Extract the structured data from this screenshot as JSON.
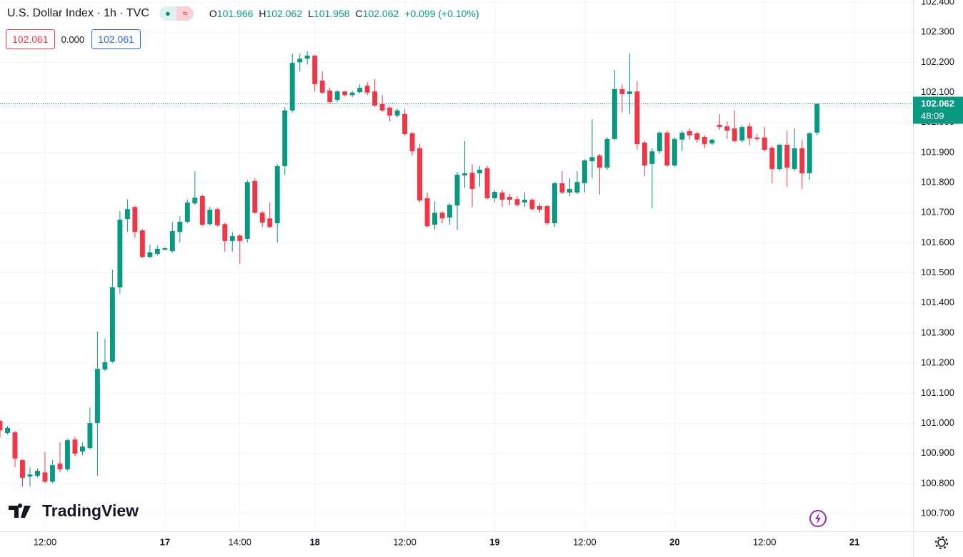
{
  "legend": {
    "title": "U.S. Dollar Index · 1h · TVC",
    "open_label": "O",
    "open": "101.966",
    "high_label": "H",
    "high": "102.062",
    "low_label": "L",
    "low": "101.958",
    "close_label": "C",
    "close": "102.062",
    "change": "+0.099 (+0.10%)"
  },
  "boxes": {
    "sell": "102.061",
    "spread": "0.000",
    "buy": "102.061"
  },
  "brand": "TradingView",
  "chart_data": {
    "type": "candlestick",
    "up_color": "#089981",
    "down_color": "#f23645",
    "grid": true,
    "open": [
      101.008,
      100.968,
      100.97,
      100.878,
      100.823,
      100.826,
      100.837,
      100.806,
      100.866,
      100.847,
      100.946,
      100.906,
      100.918,
      101.001,
      101.179,
      101.205,
      101.452,
      101.679,
      101.719,
      101.641,
      101.553,
      101.563,
      101.577,
      101.572,
      101.636,
      101.67,
      101.731,
      101.755,
      101.662,
      101.712,
      101.662,
      101.606,
      101.624,
      101.613,
      101.805,
      101.7,
      101.681,
      101.665,
      101.855,
      102.04,
      102.2,
      102.212,
      102.222,
      102.139,
      102.106,
      102.075,
      102.103,
      102.091,
      102.101,
      102.122,
      102.103,
      102.061,
      102.049,
      102.023,
      102.028,
      101.964,
      101.914,
      101.748,
      101.66,
      101.7,
      101.684,
      101.724,
      101.824,
      101.833,
      101.831,
      101.848,
      101.748,
      101.767,
      101.753,
      101.745,
      101.734,
      101.743,
      101.722,
      101.722,
      101.665,
      101.798,
      101.767,
      101.767,
      101.798,
      101.871,
      101.89,
      101.85,
      101.945,
      102.111,
      102.094,
      102.103,
      101.933,
      101.862,
      101.904,
      101.966,
      101.857,
      101.943,
      101.971,
      101.964,
      101.952,
      101.93,
      101.992,
      101.987,
      101.98,
      101.94,
      101.987,
      101.95,
      101.95,
      101.916,
      101.845,
      101.926,
      101.845,
      101.914,
      101.831,
      101.966
    ],
    "high": [
      101.014,
      100.99,
      100.975,
      100.88,
      100.854,
      100.85,
      100.904,
      100.878,
      100.937,
      100.949,
      100.956,
      100.937,
      101.053,
      101.305,
      101.281,
      101.511,
      101.705,
      101.745,
      101.724,
      101.646,
      101.594,
      101.591,
      101.584,
      101.67,
      101.689,
      101.745,
      101.838,
      101.76,
      101.719,
      101.717,
      101.667,
      101.636,
      101.629,
      101.809,
      101.814,
      101.705,
      101.734,
      101.862,
      102.051,
      102.229,
      102.229,
      102.236,
      102.224,
      102.17,
      102.115,
      102.108,
      102.106,
      102.106,
      102.127,
      102.134,
      102.144,
      102.091,
      102.054,
      102.047,
      102.044,
      101.968,
      101.928,
      101.767,
      101.738,
      101.705,
      101.731,
      101.836,
      101.938,
      101.862,
      101.855,
      101.857,
      101.774,
      101.776,
      101.762,
      101.755,
      101.767,
      101.748,
      101.731,
      101.726,
      101.802,
      101.838,
      101.814,
      101.838,
      101.878,
      102.011,
      101.895,
      101.952,
      102.175,
      102.127,
      102.229,
      102.137,
      101.938,
      101.914,
      101.971,
      101.973,
      101.95,
      101.973,
      101.98,
      101.968,
      101.957,
      101.947,
      102.028,
      102.004,
      102.04,
      101.992,
      101.999,
      101.961,
      101.985,
      101.921,
      101.93,
      101.973,
      101.98,
      101.942,
      101.968,
      102.062
    ],
    "low": [
      100.953,
      100.963,
      100.854,
      100.79,
      100.79,
      100.82,
      100.802,
      100.802,
      100.837,
      100.842,
      100.89,
      100.894,
      100.913,
      100.826,
      101.174,
      101.2,
      101.43,
      101.636,
      101.617,
      101.549,
      101.549,
      101.558,
      101.575,
      101.568,
      101.601,
      101.665,
      101.726,
      101.655,
      101.658,
      101.653,
      101.57,
      101.57,
      101.53,
      101.601,
      101.696,
      101.653,
      101.648,
      101.601,
      101.826,
      102.033,
      102.17,
      102.193,
      102.103,
      102.094,
      102.063,
      102.068,
      102.087,
      102.085,
      102.096,
      102.091,
      102.051,
      102.035,
      102.004,
      102.016,
      101.957,
      101.89,
      101.736,
      101.651,
      101.643,
      101.665,
      101.66,
      101.643,
      101.783,
      101.719,
      101.786,
      101.743,
      101.736,
      101.719,
      101.724,
      101.719,
      101.719,
      101.707,
      101.7,
      101.66,
      101.653,
      101.762,
      101.755,
      101.762,
      101.767,
      101.814,
      101.76,
      101.843,
      101.94,
      102.033,
      102.028,
      101.909,
      101.822,
      101.715,
      101.897,
      101.852,
      101.852,
      101.904,
      101.943,
      101.933,
      101.914,
      101.926,
      101.976,
      101.945,
      101.933,
      101.933,
      101.924,
      101.938,
      101.904,
      101.798,
      101.838,
      101.786,
      101.838,
      101.779,
      101.809,
      101.958
    ],
    "close": [
      100.977,
      100.985,
      100.883,
      100.819,
      100.83,
      100.842,
      100.806,
      100.861,
      100.847,
      100.944,
      100.899,
      100.923,
      101.001,
      101.181,
      101.203,
      101.452,
      101.677,
      101.712,
      101.636,
      101.553,
      101.568,
      101.58,
      101.582,
      101.639,
      101.67,
      101.734,
      101.75,
      101.66,
      101.71,
      101.658,
      101.606,
      101.622,
      101.606,
      101.802,
      101.7,
      101.667,
      101.653,
      101.855,
      102.04,
      102.198,
      102.212,
      102.222,
      102.127,
      102.099,
      102.068,
      102.103,
      102.091,
      102.099,
      102.115,
      102.099,
      102.056,
      102.04,
      102.023,
      102.04,
      101.961,
      101.904,
      101.741,
      101.655,
      101.7,
      101.681,
      101.726,
      101.826,
      101.831,
      101.779,
      101.843,
      101.748,
      101.769,
      101.743,
      101.743,
      101.726,
      101.743,
      101.712,
      101.71,
      101.665,
      101.798,
      101.767,
      101.779,
      101.802,
      101.874,
      101.885,
      101.85,
      101.945,
      102.111,
      102.094,
      102.103,
      101.928,
      101.857,
      101.904,
      101.966,
      101.857,
      101.945,
      101.966,
      101.957,
      101.943,
      101.928,
      101.943,
      101.985,
      101.973,
      101.938,
      101.985,
      101.947,
      101.945,
      101.909,
      101.845,
      101.926,
      101.85,
      101.914,
      101.831,
      101.964,
      102.062
    ],
    "xlim": [
      0,
      121.8
    ],
    "xticks": [
      {
        "value": 6,
        "label": "12:00"
      },
      {
        "value": 22,
        "label": "17"
      },
      {
        "value": 32,
        "label": "14:00"
      },
      {
        "value": 42,
        "label": "18"
      },
      {
        "value": 54,
        "label": "12:00"
      },
      {
        "value": 66,
        "label": "19"
      },
      {
        "value": 78,
        "label": "12:00"
      },
      {
        "value": 90,
        "label": "20"
      },
      {
        "value": 102,
        "label": "12:00"
      },
      {
        "value": 114,
        "label": "21"
      }
    ],
    "ylim": [
      100.641,
      102.407
    ],
    "yticks": [
      {
        "value": 100.7,
        "label": "100.700"
      },
      {
        "value": 100.8,
        "label": "100.800"
      },
      {
        "value": 100.9,
        "label": "100.900"
      },
      {
        "value": 101.0,
        "label": "101.000"
      },
      {
        "value": 101.1,
        "label": "101.100"
      },
      {
        "value": 101.2,
        "label": "101.200"
      },
      {
        "value": 101.3,
        "label": "101.300"
      },
      {
        "value": 101.4,
        "label": "101.400"
      },
      {
        "value": 101.5,
        "label": "101.500"
      },
      {
        "value": 101.6,
        "label": "101.600"
      },
      {
        "value": 101.7,
        "label": "101.700"
      },
      {
        "value": 101.8,
        "label": "101.800"
      },
      {
        "value": 101.9,
        "label": "101.900"
      },
      {
        "value": 102.0,
        "label": "102.000"
      },
      {
        "value": 102.1,
        "label": "102.100"
      },
      {
        "value": 102.2,
        "label": "102.200"
      },
      {
        "value": 102.3,
        "label": "102.300"
      },
      {
        "value": 102.4,
        "label": "102.400"
      }
    ],
    "last_price": 102.062,
    "countdown": "48:09"
  }
}
